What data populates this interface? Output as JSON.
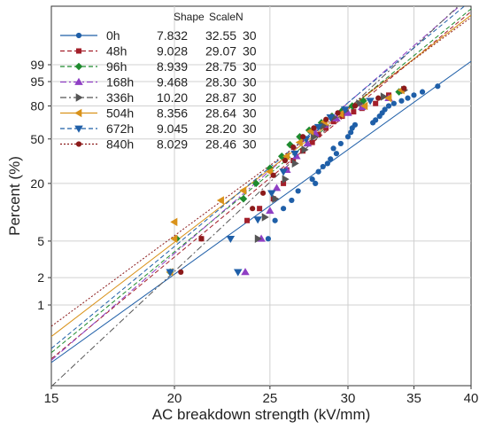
{
  "chart_data": {
    "type": "scatter",
    "subtype": "weibull-probability-plot",
    "xlabel": "AC breakdown strength (kV/mm)",
    "ylabel": "Percent (%)",
    "x_scale": "log",
    "y_scale": "weibull",
    "xlim": [
      15,
      40
    ],
    "x_ticks": [
      15,
      20,
      25,
      30,
      35,
      40
    ],
    "y_ticks": [
      1,
      2,
      5,
      20,
      50,
      80,
      95,
      99
    ],
    "legend_position": "top-left",
    "legend_headers": {
      "shape": "Shape",
      "scale": "Scale",
      "n": "N"
    },
    "series": [
      {
        "name": "0h",
        "shape": "7.832",
        "scale": "32.55",
        "n": "30",
        "color": "#1f5fa8",
        "marker": "circle",
        "dash": "solid",
        "values": [
          [
            24.9,
            5.3
          ],
          [
            25.3,
            8.3
          ],
          [
            25.8,
            11.1
          ],
          [
            26.3,
            13.5
          ],
          [
            26.7,
            16.8
          ],
          [
            27.8,
            20.0
          ],
          [
            27.6,
            22.0
          ],
          [
            28.0,
            26.0
          ],
          [
            28.3,
            29.0
          ],
          [
            28.6,
            31.0
          ],
          [
            28.8,
            34.0
          ],
          [
            29.2,
            38.0
          ],
          [
            29.0,
            42.0
          ],
          [
            29.5,
            46.0
          ],
          [
            30.0,
            52.0
          ],
          [
            30.2,
            56.0
          ],
          [
            30.3,
            60.0
          ],
          [
            30.5,
            63.0
          ],
          [
            31.8,
            65.0
          ],
          [
            32.0,
            67.5
          ],
          [
            32.3,
            71.0
          ],
          [
            32.5,
            74.0
          ],
          [
            32.7,
            77.0
          ],
          [
            33.0,
            80.0
          ],
          [
            33.4,
            82.0
          ],
          [
            34.0,
            84.0
          ],
          [
            34.5,
            86.0
          ],
          [
            35.0,
            88.0
          ],
          [
            35.7,
            90.0
          ],
          [
            37.0,
            93.0
          ]
        ]
      },
      {
        "name": "48h",
        "shape": "9.028",
        "scale": "29.07",
        "n": "30",
        "color": "#a31f2a",
        "marker": "square",
        "dash": "dash",
        "values": [
          [
            21.3,
            5.3
          ],
          [
            23.7,
            8.3
          ],
          [
            24.4,
            11.1
          ],
          [
            25.2,
            14.0
          ],
          [
            25.8,
            20.0
          ],
          [
            26.0,
            27.0
          ],
          [
            26.4,
            33.0
          ],
          [
            27.0,
            40.0
          ],
          [
            27.6,
            47.0
          ],
          [
            28.0,
            54.0
          ],
          [
            28.5,
            60.0
          ],
          [
            29.0,
            66.0
          ],
          [
            29.6,
            71.0
          ],
          [
            30.4,
            75.0
          ],
          [
            31.0,
            78.0
          ],
          [
            32.0,
            82.0
          ],
          [
            33.0,
            88.0
          ]
        ]
      },
      {
        "name": "96h",
        "shape": "8.939",
        "scale": "28.75",
        "n": "30",
        "color": "#1e8a2e",
        "marker": "diamond",
        "dash": "dash",
        "values": [
          [
            19.8,
            2.3
          ],
          [
            20.1,
            5.3
          ],
          [
            23.5,
            14.0
          ],
          [
            24.2,
            20.0
          ],
          [
            25.0,
            28.0
          ],
          [
            25.7,
            36.0
          ],
          [
            26.2,
            45.0
          ],
          [
            26.8,
            52.0
          ],
          [
            27.4,
            58.0
          ],
          [
            28.2,
            65.0
          ],
          [
            28.9,
            71.0
          ],
          [
            29.6,
            76.0
          ],
          [
            30.3,
            80.0
          ],
          [
            31.1,
            84.0
          ],
          [
            33.8,
            90.0
          ]
        ]
      },
      {
        "name": "168h",
        "shape": "9.468",
        "scale": "28.30",
        "n": "30",
        "color": "#8f3fc4",
        "marker": "triangle-up",
        "dash": "dashdot",
        "values": [
          [
            23.6,
            2.3
          ],
          [
            24.5,
            5.3
          ],
          [
            25.0,
            10.5
          ],
          [
            25.4,
            18.0
          ],
          [
            26.0,
            27.0
          ],
          [
            26.6,
            36.0
          ],
          [
            27.3,
            46.0
          ],
          [
            27.8,
            55.0
          ],
          [
            28.4,
            63.0
          ],
          [
            29.2,
            69.0
          ],
          [
            30.0,
            74.0
          ],
          [
            31.0,
            79.0
          ],
          [
            33.0,
            86.0
          ]
        ]
      },
      {
        "name": "336h",
        "shape": "10.20",
        "scale": "28.87",
        "n": "30",
        "color": "#555555",
        "marker": "triangle-right",
        "dash": "dashdot",
        "values": [
          [
            24.3,
            5.3
          ],
          [
            24.7,
            9.0
          ],
          [
            25.3,
            14.0
          ],
          [
            25.9,
            22.0
          ],
          [
            26.5,
            31.0
          ],
          [
            27.1,
            41.0
          ],
          [
            27.7,
            52.0
          ],
          [
            28.3,
            62.0
          ],
          [
            29.0,
            70.0
          ],
          [
            29.8,
            76.0
          ],
          [
            30.8,
            82.0
          ],
          [
            32.6,
            87.0
          ],
          [
            34.2,
            91.0
          ]
        ]
      },
      {
        "name": "504h",
        "shape": "8.356",
        "scale": "28.64",
        "n": "30",
        "color": "#d9921a",
        "marker": "triangle-left",
        "dash": "solid",
        "values": [
          [
            19.8,
            2.3
          ],
          [
            20.0,
            5.3
          ],
          [
            20.0,
            8.0
          ],
          [
            22.3,
            13.5
          ],
          [
            23.5,
            17.0
          ],
          [
            25.0,
            26.0
          ],
          [
            26.0,
            36.0
          ],
          [
            26.8,
            47.0
          ],
          [
            27.5,
            57.0
          ],
          [
            28.4,
            66.0
          ],
          [
            29.5,
            73.0
          ],
          [
            31.2,
            80.0
          ],
          [
            33.0,
            86.0
          ],
          [
            34.0,
            91.0
          ]
        ]
      },
      {
        "name": "672h",
        "shape": "9.045",
        "scale": "28.20",
        "n": "30",
        "color": "#1f5fa8",
        "marker": "triangle-down",
        "dash": "dash",
        "values": [
          [
            19.8,
            2.3
          ],
          [
            22.8,
            5.3
          ],
          [
            23.2,
            2.3
          ],
          [
            24.3,
            8.5
          ],
          [
            25.1,
            16.0
          ],
          [
            25.8,
            26.0
          ],
          [
            26.5,
            38.0
          ],
          [
            27.2,
            50.0
          ],
          [
            28.0,
            61.0
          ],
          [
            28.8,
            70.0
          ],
          [
            29.8,
            77.0
          ],
          [
            31.6,
            84.0
          ]
        ]
      },
      {
        "name": "840h",
        "shape": "8.029",
        "scale": "28.46",
        "n": "30",
        "color": "#8b1a1a",
        "marker": "circle",
        "dash": "dot",
        "values": [
          [
            20.3,
            2.3
          ],
          [
            21.3,
            5.3
          ],
          [
            24.0,
            11.1
          ],
          [
            24.6,
            16.0
          ],
          [
            25.2,
            24.0
          ],
          [
            25.9,
            33.0
          ],
          [
            26.4,
            43.0
          ],
          [
            27.0,
            52.0
          ],
          [
            27.7,
            60.0
          ],
          [
            28.5,
            68.0
          ],
          [
            29.3,
            74.0
          ],
          [
            30.5,
            80.0
          ],
          [
            32.2,
            86.0
          ],
          [
            34.2,
            92.0
          ]
        ]
      }
    ]
  }
}
